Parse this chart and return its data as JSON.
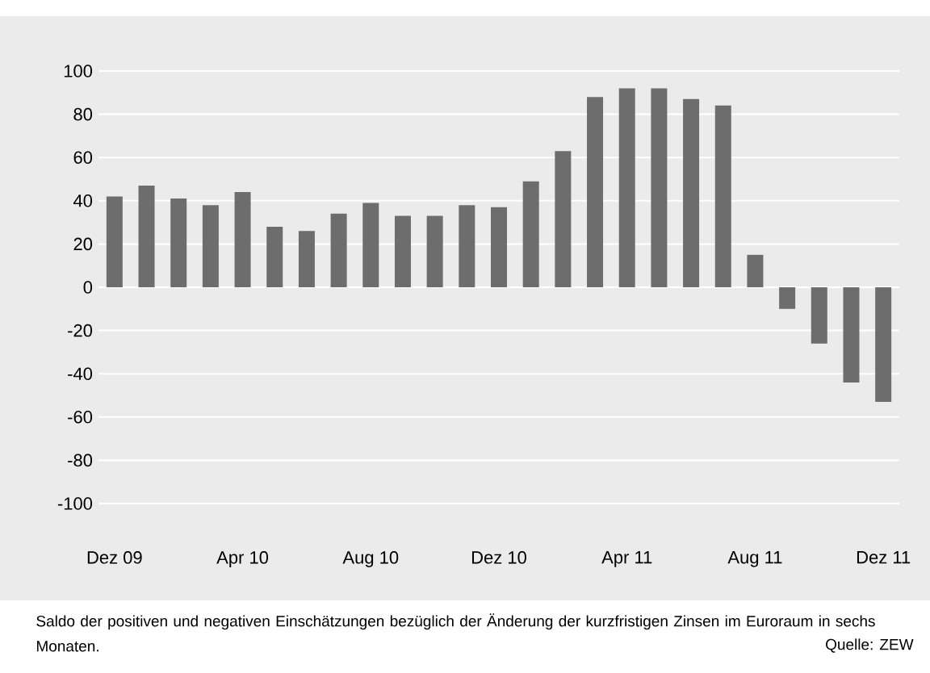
{
  "chart_data": {
    "type": "bar",
    "categories": [
      "Dez 09",
      null,
      null,
      null,
      "Apr 10",
      null,
      null,
      null,
      "Aug 10",
      null,
      null,
      null,
      "Dez 10",
      null,
      null,
      null,
      "Apr 11",
      null,
      null,
      null,
      "Aug 11",
      null,
      null,
      null,
      "Dez 11"
    ],
    "values": [
      42,
      47,
      41,
      38,
      44,
      28,
      26,
      34,
      39,
      33,
      33,
      38,
      37,
      49,
      63,
      88,
      92,
      92,
      87,
      84,
      15,
      -10,
      -26,
      -44,
      -53
    ],
    "color": "#6d6d6d",
    "ylim": [
      -100,
      100
    ],
    "yticks": [
      -100,
      -80,
      -60,
      -40,
      -20,
      0,
      20,
      40,
      60,
      80,
      100
    ],
    "grid": "y",
    "annotations": [
      "Saldo der positiven und negativen Einschätzungen bezüglich der Änderung der kurzfristigen Zinsen im Euroraum in sechs Monaten.",
      "Quelle: ZEW"
    ]
  }
}
